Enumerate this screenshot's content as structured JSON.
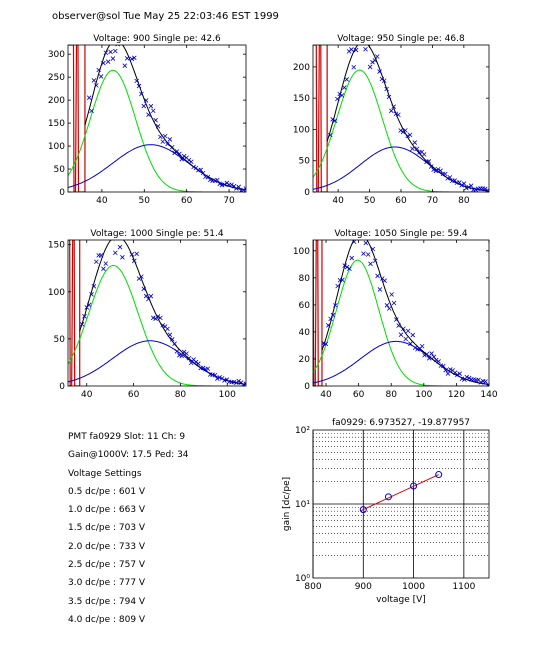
{
  "header": {
    "text": "observer@sol Tue May 25 22:03:46 EST 1999"
  },
  "info": {
    "pmt": "PMT fa0929 Slot: 11 Ch: 9",
    "gain": "Gain@1000V: 17.5 Ped: 34",
    "settings_title": "Voltage Settings",
    "settings": [
      "0.5 dc/pe : 601 V",
      "1.0 dc/pe : 663 V",
      "1.5 dc/pe : 703 V",
      "2.0 dc/pe : 733 V",
      "2.5 dc/pe : 757 V",
      "3.0 dc/pe : 777 V",
      "3.5 dc/pe : 794 V",
      "4.0 dc/pe : 809 V"
    ]
  },
  "colors": {
    "data": "#0000cc",
    "fit": "#000000",
    "single_pe": "#00dd00",
    "multi_pe": "#0000cc",
    "pedestal": "#cc0000",
    "gain_fit": "#dd0000"
  },
  "chart_data": [
    {
      "type": "scatter",
      "title": "Voltage: 900 Single pe: 42.6",
      "xlim": [
        32,
        74
      ],
      "ylim": [
        0,
        320
      ],
      "xticks": [
        40,
        50,
        60,
        70
      ],
      "yticks": [
        0,
        50,
        100,
        150,
        200,
        250,
        300
      ],
      "pedestal": {
        "center": 34,
        "sigma": 0.8,
        "cut": 36
      },
      "gaussians": [
        {
          "mu": 42.6,
          "sigma": 5.3,
          "amp": 265
        },
        {
          "mu": 51.5,
          "sigma": 9,
          "amp": 103
        }
      ]
    },
    {
      "type": "scatter",
      "title": "Voltage: 950 Single pe: 46.8",
      "xlim": [
        32,
        88
      ],
      "ylim": [
        0,
        235
      ],
      "xticks": [
        40,
        50,
        60,
        70,
        80
      ],
      "yticks": [
        0,
        50,
        100,
        150,
        200
      ],
      "pedestal": {
        "center": 34,
        "sigma": 0.8,
        "cut": 36.5
      },
      "gaussians": [
        {
          "mu": 46.8,
          "sigma": 7.2,
          "amp": 195
        },
        {
          "mu": 58,
          "sigma": 11,
          "amp": 72
        }
      ]
    },
    {
      "type": "scatter",
      "title": "Voltage: 1000 Single pe: 51.4",
      "xlim": [
        32,
        108
      ],
      "ylim": [
        0,
        155
      ],
      "xticks": [
        40,
        60,
        80,
        100
      ],
      "yticks": [
        0,
        50,
        100,
        150
      ],
      "pedestal": {
        "center": 34,
        "sigma": 0.9,
        "cut": 37
      },
      "gaussians": [
        {
          "mu": 51.4,
          "sigma": 10.5,
          "amp": 128
        },
        {
          "mu": 67,
          "sigma": 16,
          "amp": 48
        }
      ]
    },
    {
      "type": "scatter",
      "title": "Voltage: 1050 Single pe: 59.4",
      "xlim": [
        32,
        140
      ],
      "ylim": [
        0,
        108
      ],
      "xticks": [
        40,
        60,
        80,
        100,
        120,
        140
      ],
      "yticks": [
        0,
        20,
        40,
        60,
        80,
        100
      ],
      "pedestal": {
        "center": 34,
        "sigma": 1.0,
        "cut": 37.5
      },
      "gaussians": [
        {
          "mu": 59.4,
          "sigma": 13,
          "amp": 93
        },
        {
          "mu": 83,
          "sigma": 22,
          "amp": 33
        }
      ]
    },
    {
      "type": "line",
      "title": "fa0929: 6.973527, -19.877957",
      "xlabel": "voltage [V]",
      "ylabel": "gain [dc/pe]",
      "xlim": [
        800,
        1150
      ],
      "ylim": [
        1,
        100
      ],
      "yscale": "log",
      "xticks": [
        800,
        900,
        1000,
        1100
      ],
      "ytick_labels": [
        "10⁰",
        "10¹",
        "10²"
      ],
      "grid": true,
      "x": [
        900,
        950,
        1000,
        1050
      ],
      "y": [
        8.4,
        12.5,
        17.5,
        25
      ]
    }
  ]
}
